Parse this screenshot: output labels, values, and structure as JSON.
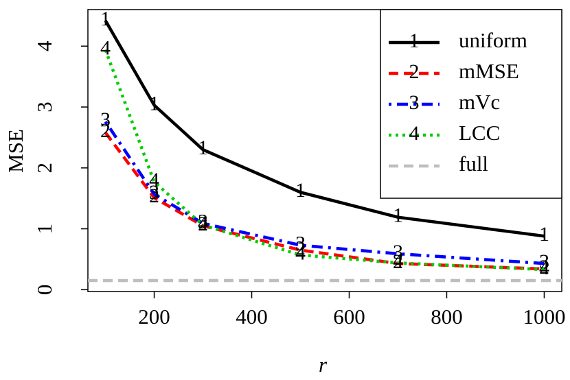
{
  "chart_data": {
    "type": "line",
    "x_label": "r",
    "y_label": "MSE",
    "x": [
      100,
      200,
      300,
      500,
      700,
      1000
    ],
    "series": [
      {
        "name": "uniform",
        "color": "#000000",
        "linestyle": "solid",
        "marker": "1",
        "values": [
          4.42,
          3.03,
          2.3,
          1.6,
          1.19,
          0.88
        ]
      },
      {
        "name": "mMSE",
        "color": "#ff0000",
        "linestyle": "dashed",
        "marker": "2",
        "values": [
          2.58,
          1.51,
          1.05,
          0.65,
          0.43,
          0.34
        ]
      },
      {
        "name": "mVc",
        "color": "#0000ff",
        "linestyle": "dotdash",
        "marker": "3",
        "values": [
          2.76,
          1.57,
          1.09,
          0.73,
          0.59,
          0.43
        ]
      },
      {
        "name": "LCC",
        "color": "#00cd00",
        "linestyle": "dotted",
        "marker": "4",
        "values": [
          3.94,
          1.77,
          1.06,
          0.57,
          0.44,
          0.33
        ]
      },
      {
        "name": "full",
        "color": "#bebebe",
        "linestyle": "dashed",
        "value": 0.15
      }
    ],
    "xlim": [
      64,
      1036
    ],
    "ylim": [
      -0.03,
      4.6
    ],
    "xticks": [
      200,
      400,
      600,
      800,
      1000
    ],
    "yticks": [
      0,
      1,
      2,
      3,
      4
    ],
    "legend": "top-right"
  }
}
